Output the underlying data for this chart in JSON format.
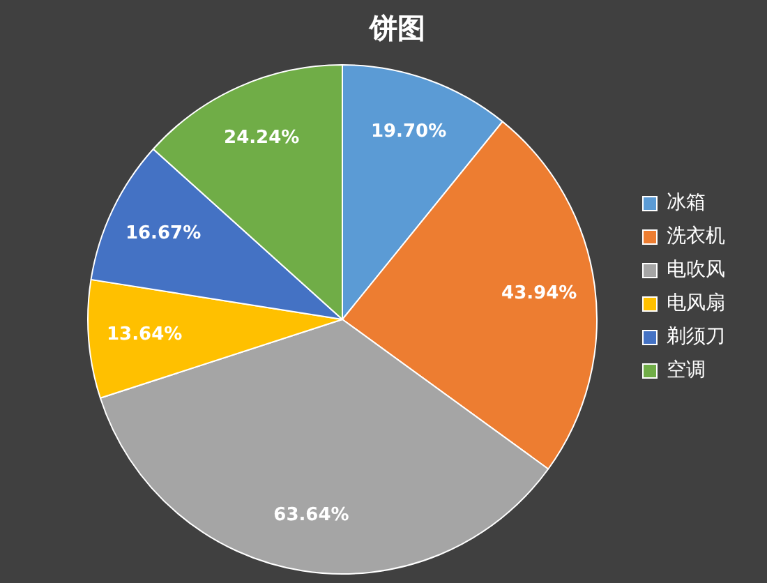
{
  "chart_data": {
    "type": "pie",
    "title": "饼图",
    "categories": [
      "冰箱",
      "洗衣机",
      "电吹风",
      "电风扇",
      "剃须刀",
      "空调"
    ],
    "values": [
      19.7,
      43.94,
      63.64,
      13.64,
      16.67,
      24.24
    ],
    "colors": [
      "#5b9bd5",
      "#ed7d31",
      "#a5a5a5",
      "#ffc000",
      "#4472c4",
      "#70ad47"
    ],
    "value_labels": [
      "19.70%",
      "43.94%",
      "63.64%",
      "13.64%",
      "16.67%",
      "24.24%"
    ],
    "data_labels": true,
    "legend": "right"
  }
}
